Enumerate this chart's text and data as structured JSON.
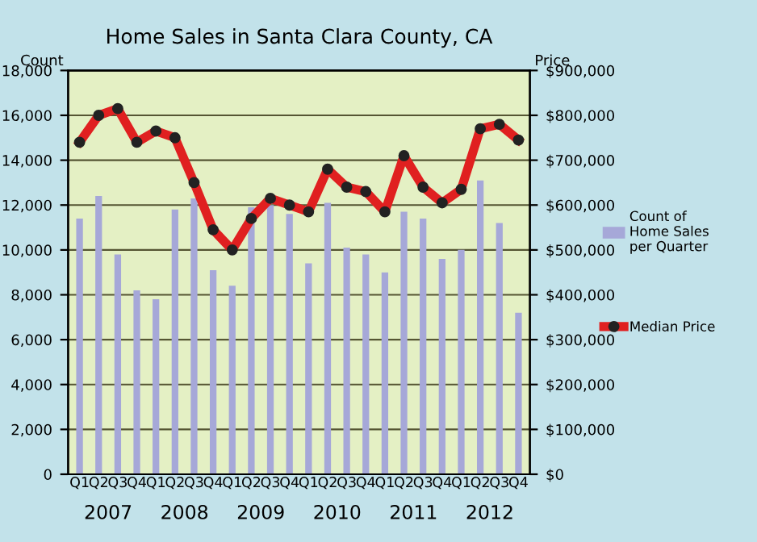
{
  "chart_data": {
    "type": "bar",
    "title": "Home Sales in Santa Clara County, CA",
    "categories": [
      "Q1",
      "Q2",
      "Q3",
      "Q4",
      "Q1",
      "Q2",
      "Q3",
      "Q4",
      "Q1",
      "Q2",
      "Q3",
      "Q4",
      "Q1",
      "Q2",
      "Q3",
      "Q4",
      "Q1",
      "Q2",
      "Q3",
      "Q4",
      "Q1",
      "Q2",
      "Q3",
      "Q4"
    ],
    "annotations": [
      "2007",
      "2008",
      "2009",
      "2010",
      "2011",
      "2012"
    ],
    "ylabel": "Count",
    "y2label": "Price",
    "ylim": [
      0,
      18000
    ],
    "yticks": [
      {
        "value": 0,
        "label": "0"
      },
      {
        "value": 2000,
        "label": "2,000"
      },
      {
        "value": 4000,
        "label": "4,000"
      },
      {
        "value": 6000,
        "label": "6,000"
      },
      {
        "value": 8000,
        "label": "8,000"
      },
      {
        "value": 10000,
        "label": "10,000"
      },
      {
        "value": 12000,
        "label": "12,000"
      },
      {
        "value": 14000,
        "label": "14,000"
      },
      {
        "value": 16000,
        "label": "16,000"
      },
      {
        "value": 18000,
        "label": "18,000"
      }
    ],
    "y2lim": [
      0,
      900000
    ],
    "y2ticks": [
      {
        "value": 0,
        "label": "$0"
      },
      {
        "value": 100000,
        "label": "$100,000"
      },
      {
        "value": 200000,
        "label": "$200,000"
      },
      {
        "value": 300000,
        "label": "$300,000"
      },
      {
        "value": 400000,
        "label": "$400,000"
      },
      {
        "value": 500000,
        "label": "$500,000"
      },
      {
        "value": 600000,
        "label": "$600,000"
      },
      {
        "value": 700000,
        "label": "$700,000"
      },
      {
        "value": 800000,
        "label": "$800,000"
      },
      {
        "value": 900000,
        "label": "$900,000"
      }
    ],
    "grid": "y",
    "legend": "right",
    "marker": "circle",
    "series": [
      {
        "name": "Count of\nHome Sales\nper Quarter",
        "color": "#a6a8d8",
        "values": [
          11400,
          12400,
          9800,
          8200,
          7800,
          11800,
          12300,
          9100,
          8400,
          11900,
          12000,
          11600,
          9400,
          12100,
          10100,
          9800,
          9000,
          11700,
          11400,
          9600,
          10000,
          13100,
          11200,
          7200
        ]
      },
      {
        "name": "Median Price",
        "type": "line",
        "axis": "y2",
        "color": "#e02020",
        "values": [
          740000,
          800000,
          815000,
          740000,
          765000,
          750000,
          650000,
          545000,
          500000,
          570000,
          615000,
          600000,
          585000,
          680000,
          640000,
          630000,
          585000,
          710000,
          640000,
          605000,
          635000,
          770000,
          780000,
          745000
        ]
      }
    ]
  }
}
